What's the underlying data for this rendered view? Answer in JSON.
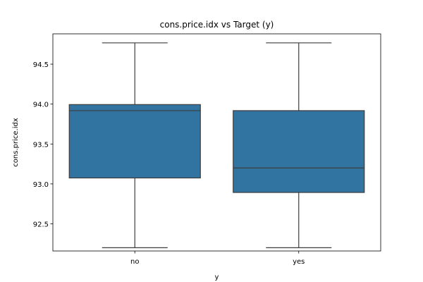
{
  "chart_data": {
    "type": "box",
    "title": "cons.price.idx vs Target (y)",
    "xlabel": "y",
    "ylabel": "cons.price.idx",
    "categories": [
      "no",
      "yes"
    ],
    "ylim": [
      92.16,
      94.88
    ],
    "yticks": [
      92.5,
      93.0,
      93.5,
      94.0,
      94.5
    ],
    "ytick_labels": [
      "92.5",
      "93.0",
      "93.5",
      "94.0",
      "94.5"
    ],
    "grid": false,
    "box_color": "#3274a1",
    "line_color": "#3d3d3d",
    "boxes": [
      {
        "category": "no",
        "whisker_low": 92.201,
        "q1": 93.075,
        "median": 93.918,
        "q3": 93.994,
        "whisker_high": 94.767
      },
      {
        "category": "yes",
        "whisker_low": 92.201,
        "q1": 92.893,
        "median": 93.2,
        "q3": 93.918,
        "whisker_high": 94.767
      }
    ]
  }
}
